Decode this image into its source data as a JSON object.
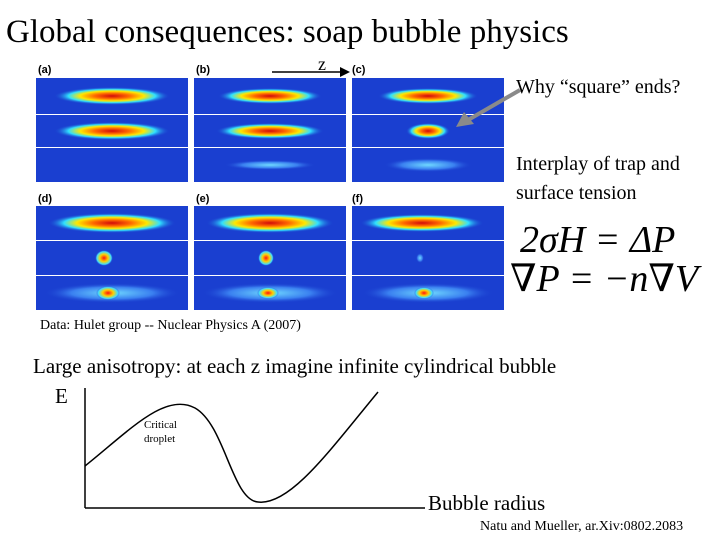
{
  "slide": {
    "title": "Global consequences: soap bubble physics",
    "z_label": "z",
    "panel_labels": [
      "(a)",
      "(b)",
      "(c)",
      "(d)",
      "(e)",
      "(f)"
    ],
    "note_square": "Why “square” ends?",
    "note_interplay": "Interplay of trap and surface tension",
    "equation_1": "2σH = ΔP",
    "equation_2": "∇P = −n∇V",
    "data_credit": "Data: Hulet group -- Nuclear Physics A (2007)",
    "anisotropy_text": "Large anisotropy: at each z imagine infinite cylindrical bubble",
    "energy_axis_label": "E",
    "critical_label": "Critical droplet",
    "x_axis_label": "Bubble radius",
    "reference": "Natu and Mueller, ar.Xiv:0802.2083"
  },
  "colors": {
    "panel_background": "#1a3fd0",
    "density_peak": "#e01010",
    "arrow_gray": "#8a8a8a"
  }
}
